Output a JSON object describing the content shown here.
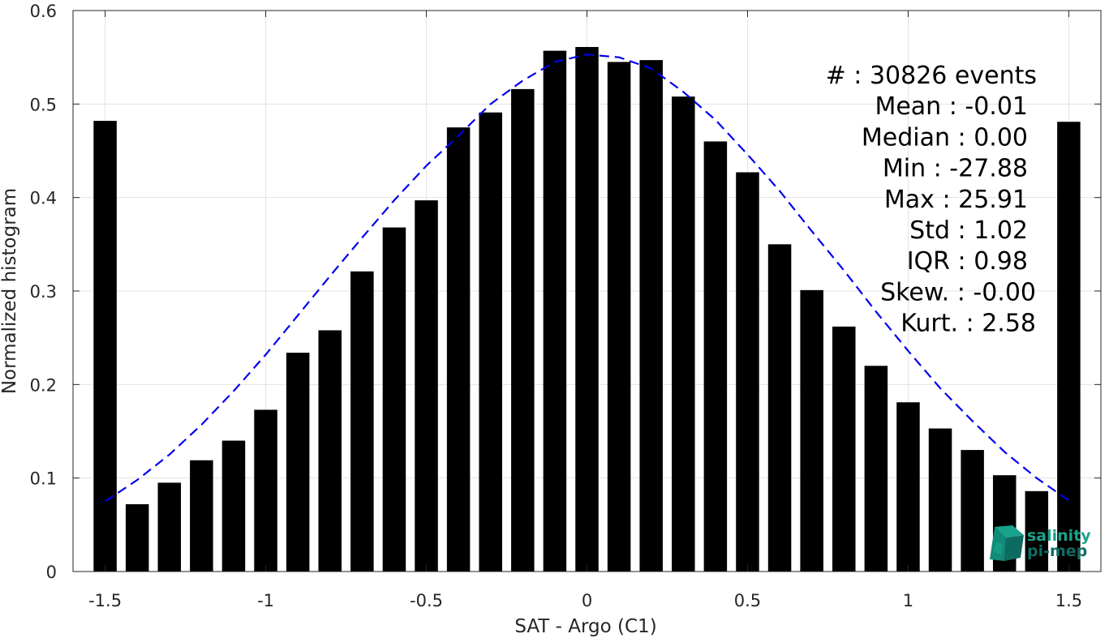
{
  "chart_data": {
    "type": "bar",
    "xlabel": "SAT - Argo (C1)",
    "ylabel": "Normalized histogram",
    "xlim": [
      -1.6,
      1.6
    ],
    "ylim": [
      0,
      0.6
    ],
    "grid": true,
    "x_ticks": [
      -1.5,
      -1,
      -0.5,
      0,
      0.5,
      1,
      1.5
    ],
    "x_tick_labels": [
      "-1.5",
      "-1",
      "-0.5",
      "0",
      "0.5",
      "1",
      "1.5"
    ],
    "y_ticks": [
      0,
      0.1,
      0.2,
      0.3,
      0.4,
      0.5,
      0.6
    ],
    "y_tick_labels": [
      "0",
      "0.1",
      "0.2",
      "0.3",
      "0.4",
      "0.5",
      "0.6"
    ],
    "bar_color": "#000000",
    "bins": {
      "x": [
        -1.5,
        -1.4,
        -1.3,
        -1.2,
        -1.1,
        -1.0,
        -0.9,
        -0.8,
        -0.7,
        -0.6,
        -0.5,
        -0.4,
        -0.3,
        -0.2,
        -0.1,
        0.0,
        0.1,
        0.2,
        0.3,
        0.4,
        0.5,
        0.6,
        0.7,
        0.8,
        0.9,
        1.0,
        1.1,
        1.2,
        1.3,
        1.4,
        1.5
      ],
      "values": [
        0.482,
        0.072,
        0.095,
        0.119,
        0.14,
        0.173,
        0.234,
        0.258,
        0.321,
        0.368,
        0.397,
        0.475,
        0.491,
        0.516,
        0.557,
        0.561,
        0.545,
        0.547,
        0.508,
        0.46,
        0.427,
        0.35,
        0.301,
        0.262,
        0.22,
        0.181,
        0.153,
        0.13,
        0.103,
        0.086,
        0.481
      ]
    },
    "fit_curve": {
      "style": "dashed",
      "color": "#0000ee",
      "x": [
        -1.5,
        -1.4,
        -1.3,
        -1.2,
        -1.1,
        -1.0,
        -0.9,
        -0.8,
        -0.7,
        -0.6,
        -0.5,
        -0.4,
        -0.3,
        -0.2,
        -0.1,
        0.0,
        0.1,
        0.2,
        0.3,
        0.4,
        0.5,
        0.6,
        0.7,
        0.8,
        0.9,
        1.0,
        1.1,
        1.2,
        1.3,
        1.4,
        1.5
      ],
      "y": [
        0.075,
        0.098,
        0.125,
        0.157,
        0.193,
        0.232,
        0.274,
        0.316,
        0.357,
        0.397,
        0.434,
        0.466,
        0.5,
        0.525,
        0.545,
        0.553,
        0.55,
        0.538,
        0.513,
        0.483,
        0.446,
        0.407,
        0.364,
        0.322,
        0.278,
        0.236,
        0.196,
        0.161,
        0.128,
        0.1,
        0.076
      ]
    },
    "stats": [
      "#  : 30826 events",
      "Mean : -0.01",
      "Median : 0.00",
      "Min : -27.88",
      "Max : 25.91",
      "Std : 1.02",
      "IQR : 0.98",
      "Skew. : -0.00",
      "Kurt. : 2.58"
    ]
  },
  "logo": {
    "line1": "salinity",
    "line2": "pi-mep",
    "colors": [
      "#19a38c",
      "#0e6b62"
    ]
  }
}
